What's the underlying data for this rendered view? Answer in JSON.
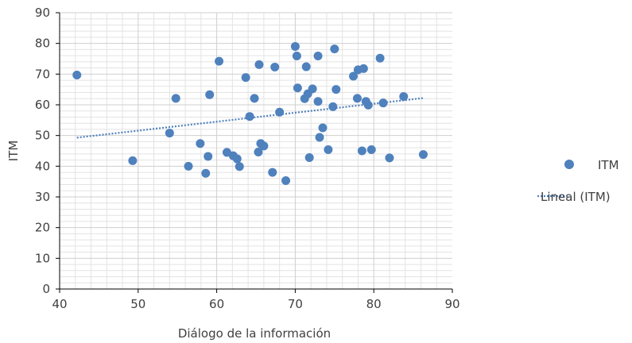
{
  "chart_data": {
    "type": "scatter",
    "xlabel": "Diálogo de la información",
    "ylabel": "ITM",
    "xlim": [
      40,
      90
    ],
    "ylim": [
      0,
      90
    ],
    "x_ticks": [
      "40",
      "50",
      "60",
      "70",
      "80",
      "90"
    ],
    "y_ticks": [
      "0",
      "10",
      "20",
      "30",
      "40",
      "50",
      "60",
      "70",
      "80",
      "90"
    ],
    "grid": true,
    "legend_position": "right",
    "series": [
      {
        "name": "ITM",
        "color": "#4f81bd",
        "points": [
          [
            42.2,
            69.7
          ],
          [
            49.3,
            41.8
          ],
          [
            54.0,
            50.8
          ],
          [
            54.8,
            62.1
          ],
          [
            56.4,
            40.0
          ],
          [
            57.9,
            47.4
          ],
          [
            58.6,
            37.7
          ],
          [
            58.9,
            43.2
          ],
          [
            59.1,
            63.3
          ],
          [
            60.3,
            74.2
          ],
          [
            61.3,
            44.5
          ],
          [
            62.1,
            43.4
          ],
          [
            62.6,
            42.4
          ],
          [
            62.9,
            39.9
          ],
          [
            63.7,
            68.9
          ],
          [
            64.2,
            56.2
          ],
          [
            64.8,
            62.1
          ],
          [
            65.3,
            44.6
          ],
          [
            65.4,
            73.1
          ],
          [
            65.6,
            47.4
          ],
          [
            66.0,
            46.6
          ],
          [
            67.1,
            38.0
          ],
          [
            67.4,
            72.3
          ],
          [
            68.0,
            57.6
          ],
          [
            68.8,
            35.3
          ],
          [
            70.0,
            79.0
          ],
          [
            70.2,
            75.9
          ],
          [
            70.3,
            65.5
          ],
          [
            71.2,
            62.0
          ],
          [
            71.4,
            72.4
          ],
          [
            71.6,
            63.6
          ],
          [
            71.8,
            42.8
          ],
          [
            72.2,
            65.2
          ],
          [
            72.9,
            61.1
          ],
          [
            72.9,
            75.9
          ],
          [
            73.1,
            49.4
          ],
          [
            73.5,
            52.5
          ],
          [
            74.2,
            45.4
          ],
          [
            74.8,
            59.4
          ],
          [
            75.0,
            78.2
          ],
          [
            75.2,
            65.0
          ],
          [
            77.4,
            69.3
          ],
          [
            77.9,
            62.1
          ],
          [
            78.0,
            71.4
          ],
          [
            78.5,
            45.0
          ],
          [
            78.7,
            71.8
          ],
          [
            79.0,
            61.1
          ],
          [
            79.3,
            59.9
          ],
          [
            79.7,
            45.4
          ],
          [
            80.8,
            75.2
          ],
          [
            81.2,
            60.6
          ],
          [
            82.0,
            42.7
          ],
          [
            83.8,
            62.7
          ],
          [
            86.3,
            43.8
          ]
        ]
      },
      {
        "name": "Lineal (ITM)",
        "color": "#4f81bd",
        "style": "dotted",
        "line": [
          [
            42.2,
            49.3
          ],
          [
            86.3,
            62.2
          ]
        ]
      }
    ]
  }
}
